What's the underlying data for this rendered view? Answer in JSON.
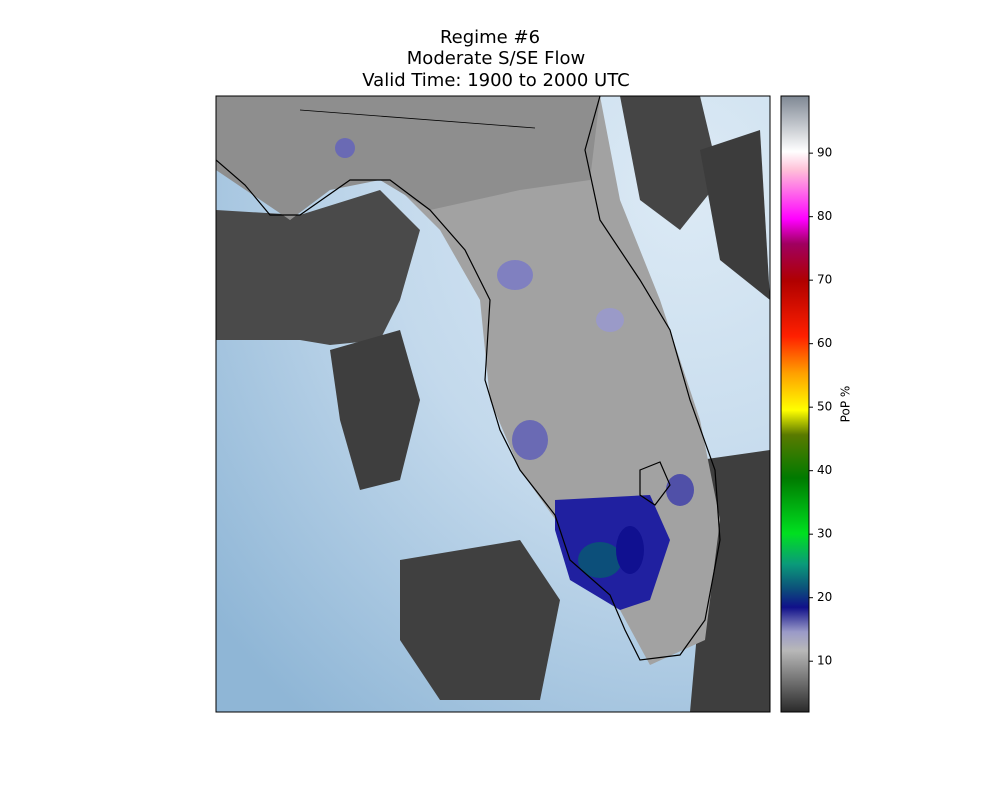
{
  "title": [
    "Regime #6",
    "Moderate S/SE Flow",
    "Valid Time: 1900 to 2000 UTC"
  ],
  "colorbar": {
    "label": "PoP %",
    "lim": [
      2,
      99
    ],
    "ticks": [
      10,
      20,
      30,
      40,
      50,
      60,
      70,
      80,
      90
    ]
  }
}
